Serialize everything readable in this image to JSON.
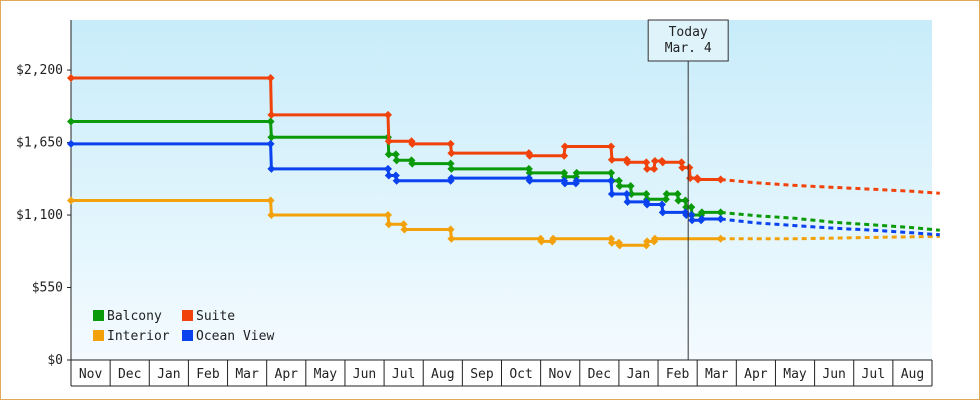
{
  "chart_data": {
    "type": "line",
    "step": true,
    "x_unit": "months since Nov 1 of first year",
    "months": [
      "Nov",
      "Dec",
      "Jan",
      "Feb",
      "Mar",
      "Apr",
      "May",
      "Jun",
      "Jul",
      "Aug",
      "Sep",
      "Oct",
      "Nov",
      "Dec",
      "Jan",
      "Feb",
      "Mar",
      "Apr",
      "May",
      "Jun",
      "Jul",
      "Aug"
    ],
    "y_ticks": [
      "$2,200",
      "$1,650",
      "$1,100",
      "$550",
      "$0"
    ],
    "y_tick_values": [
      2200,
      1650,
      1100,
      550,
      0
    ],
    "ylim": [
      0,
      2580
    ],
    "xlim": [
      0,
      22
    ],
    "today_value": 15.77,
    "today_label": [
      "Today",
      "Mar. 4"
    ],
    "grid": false,
    "legend_position": "bottom-left",
    "series": [
      {
        "name": "Balcony",
        "color": "#0a9a0a",
        "points": [
          [
            0,
            1810
          ],
          [
            5.1,
            1810
          ],
          [
            5.12,
            1690
          ],
          [
            8.1,
            1690
          ],
          [
            8.12,
            1560
          ],
          [
            8.3,
            1560
          ],
          [
            8.32,
            1515
          ],
          [
            8.7,
            1515
          ],
          [
            8.72,
            1490
          ],
          [
            9.7,
            1490
          ],
          [
            9.72,
            1450
          ],
          [
            11.7,
            1450
          ],
          [
            11.72,
            1420
          ],
          [
            12.6,
            1420
          ],
          [
            12.62,
            1390
          ],
          [
            12.9,
            1390
          ],
          [
            12.92,
            1420
          ],
          [
            13.8,
            1420
          ],
          [
            13.82,
            1360
          ],
          [
            14.0,
            1360
          ],
          [
            14.02,
            1320
          ],
          [
            14.3,
            1320
          ],
          [
            14.32,
            1260
          ],
          [
            14.7,
            1260
          ],
          [
            14.72,
            1220
          ],
          [
            15.2,
            1220
          ],
          [
            15.22,
            1260
          ],
          [
            15.5,
            1260
          ],
          [
            15.52,
            1210
          ],
          [
            15.7,
            1210
          ],
          [
            15.72,
            1160
          ],
          [
            15.85,
            1160
          ],
          [
            15.87,
            1100
          ],
          [
            16.1,
            1100
          ],
          [
            16.12,
            1120
          ],
          [
            16.6,
            1120
          ]
        ],
        "forecast": [
          [
            16.6,
            1120
          ],
          [
            17.5,
            1095
          ],
          [
            18.5,
            1075
          ],
          [
            19.5,
            1045
          ],
          [
            20.5,
            1025
          ],
          [
            21.5,
            1005
          ],
          [
            22.2,
            985
          ]
        ]
      },
      {
        "name": "Suite",
        "color": "#f0420a",
        "points": [
          [
            0,
            2140
          ],
          [
            5.1,
            2140
          ],
          [
            5.12,
            1860
          ],
          [
            8.1,
            1860
          ],
          [
            8.12,
            1660
          ],
          [
            8.7,
            1660
          ],
          [
            8.72,
            1640
          ],
          [
            9.7,
            1640
          ],
          [
            9.72,
            1570
          ],
          [
            11.7,
            1570
          ],
          [
            11.72,
            1550
          ],
          [
            12.6,
            1550
          ],
          [
            12.62,
            1620
          ],
          [
            13.8,
            1620
          ],
          [
            13.82,
            1520
          ],
          [
            14.2,
            1520
          ],
          [
            14.22,
            1500
          ],
          [
            14.7,
            1500
          ],
          [
            14.72,
            1450
          ],
          [
            14.9,
            1450
          ],
          [
            14.92,
            1510
          ],
          [
            15.1,
            1510
          ],
          [
            15.12,
            1500
          ],
          [
            15.6,
            1500
          ],
          [
            15.62,
            1460
          ],
          [
            15.8,
            1460
          ],
          [
            15.82,
            1380
          ],
          [
            16.0,
            1380
          ],
          [
            16.02,
            1370
          ],
          [
            16.6,
            1370
          ]
        ],
        "forecast": [
          [
            16.6,
            1370
          ],
          [
            17.5,
            1345
          ],
          [
            18.5,
            1325
          ],
          [
            19.5,
            1310
          ],
          [
            20.5,
            1295
          ],
          [
            21.5,
            1280
          ],
          [
            22.2,
            1265
          ]
        ]
      },
      {
        "name": "Interior",
        "color": "#f3a10a",
        "points": [
          [
            0,
            1210
          ],
          [
            5.1,
            1210
          ],
          [
            5.12,
            1100
          ],
          [
            8.1,
            1100
          ],
          [
            8.12,
            1030
          ],
          [
            8.5,
            1030
          ],
          [
            8.52,
            990
          ],
          [
            9.7,
            990
          ],
          [
            9.72,
            920
          ],
          [
            12.0,
            920
          ],
          [
            12.02,
            900
          ],
          [
            12.3,
            900
          ],
          [
            12.32,
            920
          ],
          [
            13.8,
            920
          ],
          [
            13.82,
            890
          ],
          [
            14.0,
            890
          ],
          [
            14.02,
            870
          ],
          [
            14.7,
            870
          ],
          [
            14.72,
            900
          ],
          [
            14.9,
            900
          ],
          [
            14.92,
            920
          ],
          [
            16.6,
            920
          ]
        ],
        "forecast": [
          [
            16.6,
            920
          ],
          [
            17.5,
            920
          ],
          [
            18.5,
            920
          ],
          [
            19.5,
            925
          ],
          [
            20.5,
            930
          ],
          [
            21.5,
            935
          ],
          [
            22.2,
            938
          ]
        ]
      },
      {
        "name": "Ocean View",
        "color": "#0a42f0",
        "points": [
          [
            0,
            1640
          ],
          [
            5.1,
            1640
          ],
          [
            5.12,
            1450
          ],
          [
            8.1,
            1450
          ],
          [
            8.12,
            1400
          ],
          [
            8.3,
            1400
          ],
          [
            8.32,
            1360
          ],
          [
            9.7,
            1360
          ],
          [
            9.72,
            1380
          ],
          [
            11.7,
            1380
          ],
          [
            11.72,
            1360
          ],
          [
            12.6,
            1360
          ],
          [
            12.62,
            1340
          ],
          [
            12.9,
            1340
          ],
          [
            12.92,
            1360
          ],
          [
            13.8,
            1360
          ],
          [
            13.82,
            1260
          ],
          [
            14.2,
            1260
          ],
          [
            14.22,
            1200
          ],
          [
            14.7,
            1200
          ],
          [
            14.72,
            1180
          ],
          [
            15.1,
            1180
          ],
          [
            15.12,
            1120
          ],
          [
            15.7,
            1120
          ],
          [
            15.72,
            1100
          ],
          [
            15.85,
            1100
          ],
          [
            15.87,
            1060
          ],
          [
            16.1,
            1060
          ],
          [
            16.12,
            1070
          ],
          [
            16.6,
            1070
          ]
        ],
        "forecast": [
          [
            16.6,
            1070
          ],
          [
            17.5,
            1040
          ],
          [
            18.5,
            1020
          ],
          [
            19.5,
            1000
          ],
          [
            20.5,
            985
          ],
          [
            21.5,
            965
          ],
          [
            22.2,
            950
          ]
        ]
      }
    ],
    "legend_order": [
      "Balcony",
      "Suite",
      "Interior",
      "Ocean View"
    ]
  }
}
